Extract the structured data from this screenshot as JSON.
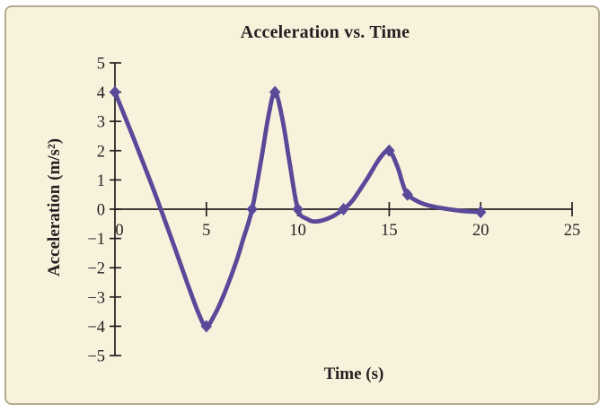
{
  "panel": {
    "background": "#f8f2dc",
    "border_color": "#b5ab90"
  },
  "chart_data": {
    "type": "line",
    "title": "Acceleration vs. Time",
    "xlabel": "Time (s)",
    "ylabel": "Acceleration (m/s²)",
    "xlim": [
      0,
      25
    ],
    "ylim": [
      -5,
      5
    ],
    "grid": false,
    "legend": false,
    "axis_color": "#231f20",
    "x_ticks": {
      "values": [
        0,
        5,
        10,
        15,
        20,
        25
      ],
      "labels": [
        "0",
        "5",
        "10",
        "15",
        "20",
        "25"
      ]
    },
    "y_ticks": {
      "values": [
        5,
        4,
        3,
        2,
        1,
        0,
        -1,
        -2,
        -3,
        -4,
        -5
      ],
      "labels": [
        "5",
        "4",
        "3",
        "2",
        "1",
        "0",
        "−1",
        "−2",
        "−3",
        "−4",
        "−5"
      ]
    },
    "series": [
      {
        "name": "acceleration",
        "color": "#5a4899",
        "marker": "diamond",
        "points": [
          [
            0,
            4
          ],
          [
            5,
            -4
          ],
          [
            7.5,
            0
          ],
          [
            8.75,
            4
          ],
          [
            10,
            0
          ],
          [
            12.5,
            0
          ],
          [
            15,
            2
          ],
          [
            16,
            0.5
          ],
          [
            20,
            -0.1
          ]
        ],
        "curve": [
          [
            0,
            4
          ],
          [
            1,
            2.45
          ],
          [
            2,
            0.85
          ],
          [
            3,
            -0.85
          ],
          [
            4,
            -2.6
          ],
          [
            4.6,
            -3.6
          ],
          [
            5,
            -4
          ],
          [
            5.5,
            -3.55
          ],
          [
            6,
            -2.85
          ],
          [
            6.6,
            -1.85
          ],
          [
            7,
            -1.05
          ],
          [
            7.5,
            0
          ],
          [
            8,
            1.7
          ],
          [
            8.4,
            3.2
          ],
          [
            8.75,
            4
          ],
          [
            9.15,
            3.1
          ],
          [
            9.55,
            1.6
          ],
          [
            10,
            0
          ],
          [
            10.5,
            -0.33
          ],
          [
            11,
            -0.42
          ],
          [
            11.8,
            -0.28
          ],
          [
            12.5,
            0
          ],
          [
            13,
            0.3
          ],
          [
            13.8,
            1.05
          ],
          [
            14.5,
            1.75
          ],
          [
            15,
            2
          ],
          [
            15.45,
            1.45
          ],
          [
            15.75,
            0.85
          ],
          [
            16,
            0.5
          ],
          [
            16.6,
            0.25
          ],
          [
            17.2,
            0.12
          ],
          [
            18,
            0.02
          ],
          [
            19,
            -0.06
          ],
          [
            20,
            -0.1
          ]
        ]
      }
    ]
  }
}
